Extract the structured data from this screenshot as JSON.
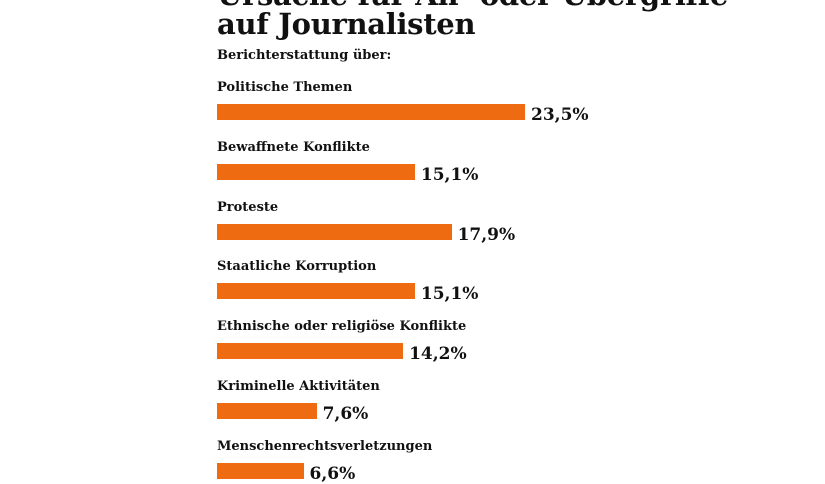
{
  "colors": {
    "bar": "#ee6b12",
    "text": "#111111",
    "background": "#ffffff"
  },
  "chart_data": {
    "type": "bar",
    "orientation": "horizontal",
    "title_lines": [
      "Ursache für An- oder Übergriffe",
      "auf Journalisten"
    ],
    "subtitle": "Berichterstattung über:",
    "categories": [
      "Politische Themen",
      "Bewaffnete Konflikte",
      "Proteste",
      "Staatliche Korruption",
      "Ethnische oder religiöse Konflikte",
      "Kriminelle Aktivitäten",
      "Menschenrechtsverletzungen"
    ],
    "values": [
      23.5,
      15.1,
      17.9,
      15.1,
      14.2,
      7.6,
      6.6
    ],
    "value_labels": [
      "23,5%",
      "15,1%",
      "17,9%",
      "15,1%",
      "14,2%",
      "7,6%",
      "6,6%"
    ],
    "unit": "%",
    "xlim": [
      0,
      23.5
    ],
    "grid": false,
    "legend": "none"
  }
}
